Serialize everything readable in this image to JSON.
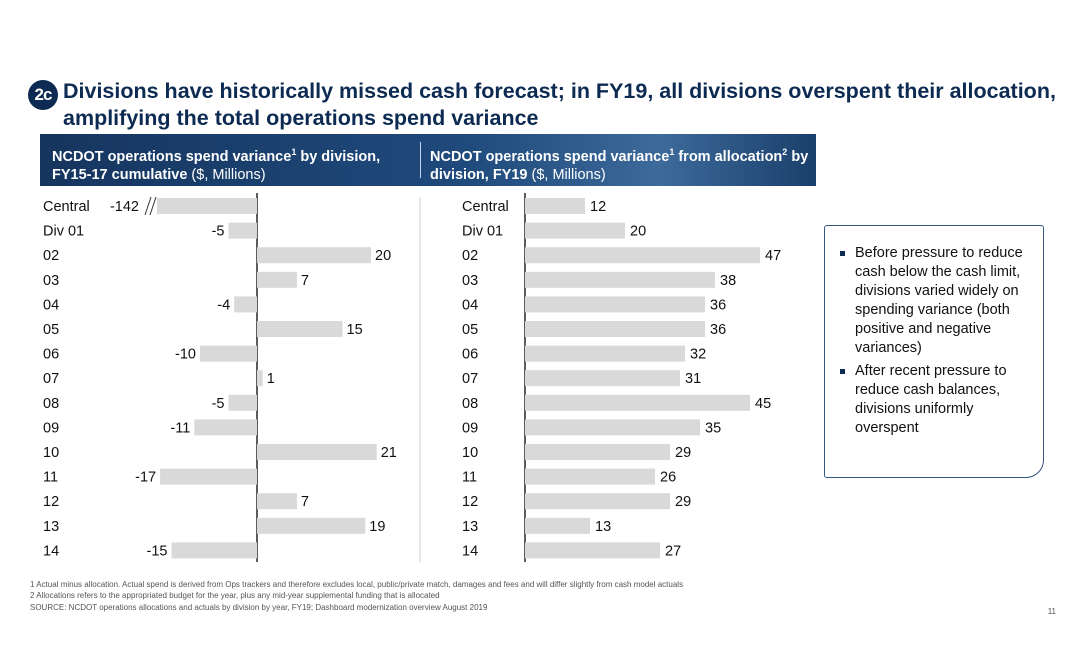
{
  "badge": "2c",
  "title": "Divisions have historically missed cash forecast; in FY19, all divisions overspent their allocation, amplifying the total operations spend variance",
  "headers": {
    "left": {
      "text": "NCDOT operations spend variance",
      "sup": "1",
      "text2": " by division, FY15-17 cumulative ",
      "unit": "($, Millions)"
    },
    "right": {
      "text": "NCDOT operations spend variance",
      "sup": "1",
      "text2": " from allocation",
      "sup2": "2",
      "text3": " by division, FY19 ",
      "unit": "($, Millions)"
    }
  },
  "chart_data": [
    {
      "type": "bar",
      "orientation": "horizontal",
      "categories": [
        "Central",
        "Div 01",
        "02",
        "03",
        "04",
        "05",
        "06",
        "07",
        "08",
        "09",
        "10",
        "11",
        "12",
        "13",
        "14"
      ],
      "values": [
        -142,
        -5,
        20,
        7,
        -4,
        15,
        -10,
        1,
        -5,
        -11,
        21,
        -17,
        7,
        19,
        -15
      ],
      "axis_break": "Central",
      "bar_color": "#d9d9d9"
    },
    {
      "type": "bar",
      "orientation": "horizontal",
      "categories": [
        "Central",
        "Div 01",
        "02",
        "03",
        "04",
        "05",
        "06",
        "07",
        "08",
        "09",
        "10",
        "11",
        "12",
        "13",
        "14"
      ],
      "values": [
        12,
        20,
        47,
        38,
        36,
        36,
        32,
        31,
        45,
        35,
        29,
        26,
        29,
        13,
        27
      ],
      "bar_color": "#d9d9d9"
    }
  ],
  "notes": [
    "Before pressure to reduce cash below the cash limit, divisions varied widely on spending variance (both positive and negative variances)",
    "After recent pressure to reduce cash balances, divisions uniformly overspent"
  ],
  "footnotes": [
    "1 Actual minus allocation. Actual spend is derived from Ops trackers and therefore excludes local, public/private match, damages and fees and will differ slightly from cash model actuals",
    "2 Allocations refers to the appropriated budget for the year, plus any mid-year supplemental funding that is allocated",
    "SOURCE: NCDOT operations allocations and actuals by division by year, FY19; Dashboard modernization overview August 2019"
  ],
  "page_number": "11"
}
